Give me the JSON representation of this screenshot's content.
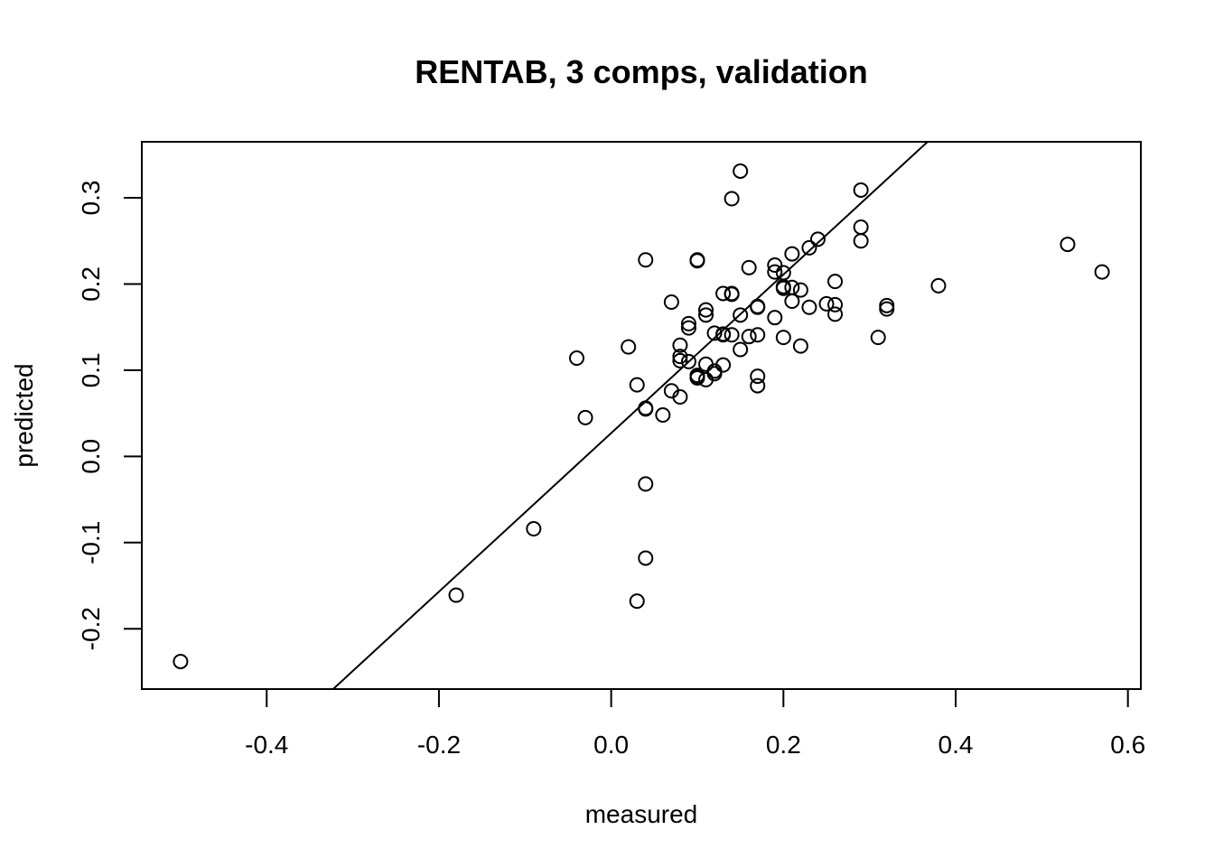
{
  "chart_data": {
    "type": "scatter",
    "title": "RENTAB, 3 comps, validation",
    "xlabel": "measured",
    "ylabel": "predicted",
    "xlim": [
      -0.545,
      0.615
    ],
    "ylim": [
      -0.27,
      0.365
    ],
    "x_ticks": [
      -0.4,
      -0.2,
      0.0,
      0.2,
      0.4,
      0.6
    ],
    "x_tick_labels": [
      "-0.4",
      "-0.2",
      "0.0",
      "0.2",
      "0.4",
      "0.6"
    ],
    "y_ticks": [
      -0.2,
      -0.1,
      0.0,
      0.1,
      0.2,
      0.3
    ],
    "y_tick_labels": [
      "-0.2",
      "-0.1",
      "0.0",
      "0.1",
      "0.2",
      "0.3"
    ],
    "grid": false,
    "reference_line": {
      "intercept": 0.027,
      "slope": 0.92
    },
    "points": [
      [
        0.15,
        0.331
      ],
      [
        0.14,
        0.299
      ],
      [
        0.29,
        0.309
      ],
      [
        0.29,
        0.266
      ],
      [
        0.24,
        0.252
      ],
      [
        0.29,
        0.25
      ],
      [
        0.53,
        0.246
      ],
      [
        0.23,
        0.242
      ],
      [
        0.21,
        0.235
      ],
      [
        0.04,
        0.228
      ],
      [
        0.1,
        0.228
      ],
      [
        0.1,
        0.227
      ],
      [
        0.19,
        0.222
      ],
      [
        0.16,
        0.219
      ],
      [
        0.19,
        0.214
      ],
      [
        0.57,
        0.214
      ],
      [
        0.2,
        0.213
      ],
      [
        0.26,
        0.203
      ],
      [
        0.38,
        0.198
      ],
      [
        0.2,
        0.197
      ],
      [
        0.21,
        0.196
      ],
      [
        0.2,
        0.195
      ],
      [
        0.22,
        0.193
      ],
      [
        0.13,
        0.189
      ],
      [
        0.14,
        0.189
      ],
      [
        0.14,
        0.188
      ],
      [
        0.21,
        0.18
      ],
      [
        0.07,
        0.179
      ],
      [
        0.25,
        0.177
      ],
      [
        0.26,
        0.176
      ],
      [
        0.32,
        0.175
      ],
      [
        0.17,
        0.174
      ],
      [
        0.17,
        0.173
      ],
      [
        0.23,
        0.173
      ],
      [
        0.32,
        0.171
      ],
      [
        0.11,
        0.17
      ],
      [
        0.26,
        0.165
      ],
      [
        0.11,
        0.164
      ],
      [
        0.15,
        0.164
      ],
      [
        0.19,
        0.161
      ],
      [
        0.09,
        0.154
      ],
      [
        0.09,
        0.149
      ],
      [
        0.12,
        0.143
      ],
      [
        0.13,
        0.142
      ],
      [
        0.13,
        0.141
      ],
      [
        0.14,
        0.141
      ],
      [
        0.17,
        0.141
      ],
      [
        0.16,
        0.139
      ],
      [
        0.2,
        0.138
      ],
      [
        0.31,
        0.138
      ],
      [
        0.08,
        0.129
      ],
      [
        0.02,
        0.127
      ],
      [
        0.22,
        0.128
      ],
      [
        0.15,
        0.124
      ],
      [
        0.08,
        0.116
      ],
      [
        -0.04,
        0.114
      ],
      [
        0.08,
        0.111
      ],
      [
        0.09,
        0.11
      ],
      [
        0.11,
        0.107
      ],
      [
        0.13,
        0.106
      ],
      [
        0.12,
        0.099
      ],
      [
        0.12,
        0.096
      ],
      [
        0.1,
        0.094
      ],
      [
        0.1,
        0.093
      ],
      [
        0.17,
        0.093
      ],
      [
        0.1,
        0.091
      ],
      [
        0.11,
        0.089
      ],
      [
        0.03,
        0.083
      ],
      [
        0.17,
        0.082
      ],
      [
        0.07,
        0.076
      ],
      [
        0.08,
        0.069
      ],
      [
        0.04,
        0.056
      ],
      [
        0.04,
        0.055
      ],
      [
        0.06,
        0.048
      ],
      [
        -0.03,
        0.045
      ],
      [
        0.04,
        -0.032
      ],
      [
        -0.09,
        -0.084
      ],
      [
        0.04,
        -0.118
      ],
      [
        -0.18,
        -0.161
      ],
      [
        0.03,
        -0.168
      ],
      [
        -0.5,
        -0.238
      ]
    ]
  }
}
